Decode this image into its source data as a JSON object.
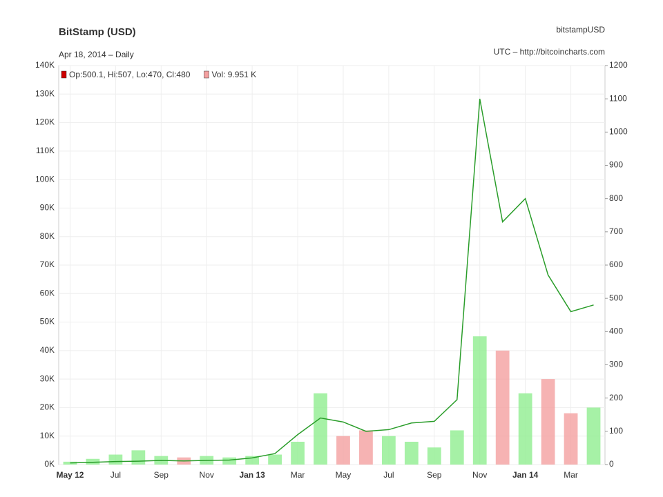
{
  "chart_data": {
    "type": "price-volume",
    "title": "BitStamp (USD)",
    "subtitle": "Apr 18, 2014 – Daily",
    "symbol": "bitstampUSD",
    "source": "UTC – http://bitcoincharts.com",
    "categories": [
      "May 12",
      null,
      "Jul",
      null,
      "Sep",
      null,
      "Nov",
      null,
      "Jan 13",
      null,
      "Mar",
      null,
      "May",
      null,
      "Jul",
      null,
      "Sep",
      null,
      "Nov",
      null,
      "Jan 14",
      null,
      "Mar",
      null
    ],
    "series": [
      {
        "name": "Op:500.1, Hi:507, Lo:470, Cl:480",
        "color": "#cc0000",
        "axis": "y2",
        "values": [
          5,
          6.7,
          9,
          10,
          12.4,
          11,
          12.5,
          13.5,
          20,
          33,
          90,
          140,
          128,
          100,
          105,
          125,
          130,
          195,
          1100,
          730,
          800,
          570,
          460,
          480
        ]
      },
      {
        "name": "Vol: 9.951 K",
        "color": "#f4a0a0",
        "up_color": "#90ee90",
        "axis": "y",
        "values": [
          1000,
          2000,
          3500,
          5000,
          3000,
          2500,
          3000,
          2500,
          3000,
          3500,
          8000,
          25000,
          10000,
          12000,
          10000,
          8000,
          6000,
          12000,
          45000,
          40000,
          25000,
          30000,
          18000,
          20000
        ]
      }
    ],
    "ylim": [
      0,
      140000
    ],
    "yticks": [
      {
        "value": 0,
        "label": "0K"
      },
      {
        "value": 10000,
        "label": "10K"
      },
      {
        "value": 20000,
        "label": "20K"
      },
      {
        "value": 30000,
        "label": "30K"
      },
      {
        "value": 40000,
        "label": "40K"
      },
      {
        "value": 50000,
        "label": "50K"
      },
      {
        "value": 60000,
        "label": "60K"
      },
      {
        "value": 70000,
        "label": "70K"
      },
      {
        "value": 80000,
        "label": "80K"
      },
      {
        "value": 90000,
        "label": "90K"
      },
      {
        "value": 100000,
        "label": "100K"
      },
      {
        "value": 110000,
        "label": "110K"
      },
      {
        "value": 120000,
        "label": "120K"
      },
      {
        "value": 130000,
        "label": "130K"
      },
      {
        "value": 140000,
        "label": "140K"
      }
    ],
    "y2lim": [
      0,
      1200
    ],
    "y2ticks": [
      0,
      100,
      200,
      300,
      400,
      500,
      600,
      700,
      800,
      900,
      1000,
      1100,
      1200
    ],
    "grid": true
  }
}
